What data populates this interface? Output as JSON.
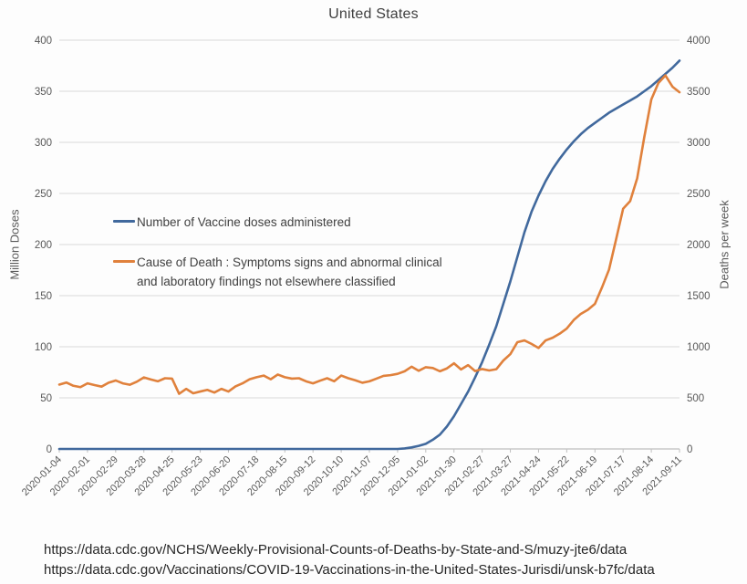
{
  "chart_data": {
    "type": "line",
    "title": "United States",
    "left_axis": {
      "title": "Million Doses",
      "min": 0,
      "max": 400,
      "step": 50
    },
    "right_axis": {
      "title": "Deaths per week",
      "min": 0,
      "max": 4000,
      "step": 500
    },
    "x_tick_labels": [
      "2020-01-04",
      "2020-02-01",
      "2020-02-29",
      "2020-03-28",
      "2020-04-25",
      "2020-05-23",
      "2020-06-20",
      "2020-07-18",
      "2020-08-15",
      "2020-09-12",
      "2020-10-10",
      "2020-11-07",
      "2020-12-05",
      "2021-01-02",
      "2021-01-30",
      "2021-02-27",
      "2021-03-27",
      "2021-04-24",
      "2021-05-22",
      "2021-06-19",
      "2021-07-17",
      "2021-08-14",
      "2021-09-11"
    ],
    "points_per_label": 4,
    "grid": true,
    "legend_position": "inside-left",
    "series": [
      {
        "name": "Number of Vaccine doses administered",
        "legend_lines": [
          "Number of Vaccine doses administered"
        ],
        "axis": "left",
        "color": "#41699d",
        "values": [
          0,
          0,
          0,
          0,
          0,
          0,
          0,
          0,
          0,
          0,
          0,
          0,
          0,
          0,
          0,
          0,
          0,
          0,
          0,
          0,
          0,
          0,
          0,
          0,
          0,
          0,
          0,
          0,
          0,
          0,
          0,
          0,
          0,
          0,
          0,
          0,
          0,
          0,
          0,
          0,
          0,
          0,
          0,
          0,
          0,
          0,
          0,
          0,
          0,
          0.5,
          1.5,
          3,
          5,
          9,
          14,
          22,
          32,
          44,
          56,
          70,
          85,
          102,
          120,
          142,
          164,
          188,
          212,
          232,
          248,
          262,
          274,
          284,
          293,
          301,
          308,
          314,
          319,
          324,
          329,
          333,
          337,
          341,
          345,
          350,
          355,
          361,
          367,
          373,
          380
        ]
      },
      {
        "name": "Cause of Death : Symptoms signs and abnormal clinical and laboratory findings not elsewhere classified",
        "legend_lines": [
          "Cause of Death : Symptoms signs and abnormal clinical",
          "and laboratory findings not elsewhere classified"
        ],
        "axis": "right",
        "color": "#e0813c",
        "values": [
          630,
          650,
          618,
          605,
          642,
          625,
          610,
          648,
          670,
          642,
          628,
          658,
          700,
          680,
          662,
          692,
          688,
          540,
          588,
          545,
          562,
          578,
          552,
          588,
          562,
          612,
          642,
          682,
          702,
          718,
          682,
          728,
          702,
          688,
          692,
          662,
          642,
          668,
          692,
          662,
          718,
          692,
          672,
          648,
          662,
          688,
          715,
          722,
          735,
          760,
          805,
          765,
          800,
          792,
          760,
          788,
          838,
          778,
          820,
          762,
          782,
          768,
          780,
          865,
          928,
          1045,
          1062,
          1028,
          988,
          1062,
          1088,
          1128,
          1178,
          1262,
          1322,
          1362,
          1420,
          1580,
          1755,
          2050,
          2350,
          2425,
          2650,
          3050,
          3420,
          3580,
          3655,
          3545,
          3490
        ]
      }
    ],
    "colors": {
      "gridline": "#d9d9d9",
      "axis_line": "#c0c0c0",
      "tick_text": "#595959",
      "title_text": "#3f3f3f"
    }
  },
  "footer": {
    "sources": [
      "https://data.cdc.gov/NCHS/Weekly-Provisional-Counts-of-Deaths-by-State-and-S/muzy-jte6/data",
      "https://data.cdc.gov/Vaccinations/COVID-19-Vaccinations-in-the-United-States-Jurisdi/unsk-b7fc/data"
    ]
  }
}
